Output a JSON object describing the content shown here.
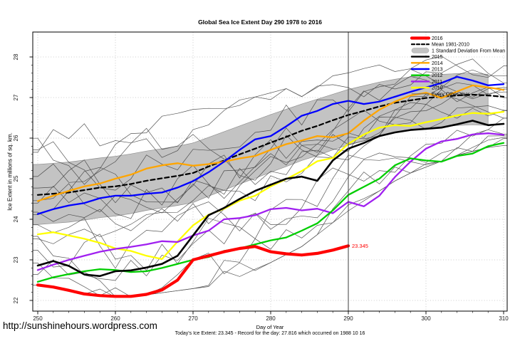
{
  "page": {
    "title": "Global Sea Ice Extent Day 290 1978 to 2016",
    "ylabel": "Ice Extent in millions of sq. km.",
    "xlabel": "Day of Year",
    "sublabel": "Today's Ice Extent: 23.345  - Record for the day: 27.816 which occurred on 1988 10 16",
    "footer_url": "http://sunshinehours.wordpress.com"
  },
  "chart_data": {
    "type": "line",
    "title": "Global Sea Ice Extent Day 290 1978 to 2016",
    "xlabel": "Day of Year",
    "ylabel": "Ice Extent in millions of sq. km.",
    "xlim": [
      249.4,
      310.5
    ],
    "ylim": [
      21.7,
      28.6
    ],
    "x_ticks": [
      250,
      260,
      270,
      280,
      290,
      300,
      310
    ],
    "y_ticks": [
      22,
      23,
      24,
      25,
      26,
      27,
      28
    ],
    "grid": "dotted",
    "x": [
      250,
      252,
      254,
      256,
      258,
      260,
      262,
      264,
      266,
      268,
      270,
      272,
      274,
      276,
      278,
      280,
      282,
      284,
      286,
      288,
      290,
      292,
      294,
      296,
      298,
      300,
      302,
      304,
      306,
      308,
      310
    ],
    "band": {
      "label": "1 Standard Deviation From Mean",
      "fill": "#C3C3C3",
      "edge": "#8f8f8f",
      "x_end": 308,
      "upper": [
        25.35,
        25.38,
        25.41,
        25.46,
        25.51,
        25.55,
        25.61,
        25.68,
        25.74,
        25.8,
        25.88,
        26.02,
        26.16,
        26.3,
        26.44,
        26.58,
        26.71,
        26.84,
        26.96,
        27.08,
        27.2,
        27.29,
        27.38,
        27.45,
        27.51,
        27.55,
        27.57,
        27.59,
        27.6,
        27.57,
        27.53
      ],
      "lower": [
        23.87,
        23.9,
        23.93,
        23.98,
        24.04,
        24.08,
        24.14,
        24.22,
        24.28,
        24.34,
        24.41,
        24.57,
        24.72,
        24.87,
        25.01,
        25.16,
        25.3,
        25.45,
        25.57,
        25.71,
        25.83,
        25.93,
        26.04,
        26.13,
        26.19,
        26.25,
        26.28,
        26.31,
        26.33,
        26.31,
        26.28
      ]
    },
    "series": [
      {
        "name": "Mean 1981-2010",
        "color": "#000000",
        "width": 2.2,
        "dash": "6,4",
        "values": [
          24.6,
          24.63,
          24.66,
          24.72,
          24.78,
          24.81,
          24.87,
          24.95,
          25.01,
          25.07,
          25.14,
          25.3,
          25.45,
          25.6,
          25.74,
          25.89,
          26.03,
          26.18,
          26.3,
          26.44,
          26.57,
          26.67,
          26.78,
          26.87,
          26.93,
          26.99,
          27.02,
          27.05,
          27.07,
          27.05,
          27.02
        ]
      },
      {
        "name": "2010",
        "color": "#FFFF00",
        "width": 2.3,
        "values": [
          23.63,
          23.68,
          23.6,
          23.52,
          23.42,
          23.28,
          23.22,
          23.1,
          23.02,
          23.45,
          23.85,
          24.11,
          24.26,
          24.46,
          24.58,
          24.81,
          24.99,
          25.19,
          25.43,
          25.51,
          25.86,
          26.09,
          26.26,
          26.32,
          26.3,
          26.39,
          26.47,
          26.56,
          26.62,
          26.6,
          26.65
        ]
      },
      {
        "name": "2011",
        "color": "#A020F0",
        "width": 2.3,
        "values": [
          22.75,
          22.88,
          23.0,
          23.1,
          23.2,
          23.27,
          23.32,
          23.38,
          23.46,
          23.44,
          23.6,
          23.72,
          24.0,
          24.03,
          24.1,
          24.25,
          24.28,
          24.22,
          24.26,
          24.15,
          24.43,
          24.32,
          24.58,
          25.04,
          25.42,
          25.74,
          25.92,
          25.98,
          26.09,
          26.12,
          26.08
        ]
      },
      {
        "name": "2012",
        "color": "#00CD00",
        "width": 2.3,
        "values": [
          22.46,
          22.57,
          22.65,
          22.72,
          22.77,
          22.75,
          22.7,
          22.72,
          22.8,
          22.9,
          23.0,
          23.07,
          23.22,
          23.28,
          23.38,
          23.48,
          23.55,
          23.72,
          23.9,
          24.22,
          24.6,
          24.8,
          25.0,
          25.33,
          25.5,
          25.45,
          25.42,
          25.56,
          25.62,
          25.8,
          25.88
        ]
      },
      {
        "name": "2014",
        "color": "#FFA500",
        "width": 2.3,
        "values": [
          24.45,
          24.58,
          24.7,
          24.81,
          24.88,
          25.0,
          25.1,
          25.25,
          25.33,
          25.38,
          25.32,
          25.36,
          25.42,
          25.5,
          25.56,
          25.71,
          25.85,
          25.94,
          26.05,
          26.02,
          26.12,
          26.43,
          26.7,
          26.9,
          27.05,
          27.12,
          26.99,
          27.15,
          27.3,
          27.25,
          27.19
        ]
      },
      {
        "name": "2013",
        "color": "#0000FF",
        "width": 2.3,
        "values": [
          24.13,
          24.25,
          24.34,
          24.4,
          24.52,
          24.58,
          24.58,
          24.63,
          24.66,
          24.78,
          24.94,
          25.16,
          25.42,
          25.71,
          25.97,
          26.05,
          26.29,
          26.55,
          26.67,
          26.84,
          26.92,
          26.84,
          26.9,
          27.02,
          27.14,
          27.25,
          27.36,
          27.51,
          27.42,
          27.3,
          27.33
        ]
      },
      {
        "name": "2015",
        "color": "#000000",
        "width": 2.6,
        "values": [
          22.86,
          22.97,
          22.85,
          22.64,
          22.6,
          22.72,
          22.74,
          22.81,
          22.9,
          23.1,
          23.6,
          24.1,
          24.28,
          24.5,
          24.7,
          24.85,
          25.0,
          25.05,
          24.95,
          25.45,
          25.74,
          25.88,
          26.05,
          26.14,
          26.2,
          26.23,
          26.26,
          26.34,
          26.43,
          26.32,
          26.35
        ]
      },
      {
        "name": "2016",
        "color": "#FF0000",
        "width": 4.2,
        "values": [
          22.38,
          22.33,
          22.25,
          22.16,
          22.12,
          22.1,
          22.1,
          22.15,
          22.26,
          22.5,
          23.0,
          23.1,
          23.2,
          23.28,
          23.33,
          23.2,
          23.15,
          23.12,
          23.16,
          23.24,
          23.345
        ]
      }
    ],
    "other_years": {
      "label": "Every Other Year",
      "count": 16,
      "color": "#3f3f3f",
      "min": [
        22.25,
        22.18,
        22.1,
        22.02,
        21.98,
        21.95,
        21.95,
        22.0,
        22.05,
        22.1,
        22.15,
        22.2,
        22.3,
        22.45,
        22.6,
        22.8,
        23.0,
        23.2,
        23.5,
        23.8,
        24.1,
        24.35,
        24.6,
        24.85,
        25.05,
        25.2,
        25.35,
        25.5,
        25.6,
        25.7,
        25.75
      ],
      "max": [
        26.42,
        26.45,
        26.48,
        26.5,
        26.52,
        26.55,
        26.6,
        26.62,
        26.68,
        26.75,
        26.85,
        26.92,
        27.0,
        27.08,
        27.15,
        27.25,
        27.35,
        27.45,
        27.55,
        27.65,
        27.75,
        27.82,
        27.9,
        27.95,
        28.0,
        28.05,
        28.1,
        28.1,
        28.08,
        28.05,
        28.0
      ]
    },
    "annotations": {
      "vline_day": 290,
      "end_label": "23.345",
      "end_value": 23.345
    },
    "legend": [
      {
        "label": "2016",
        "color": "#FF0000",
        "style": "thick"
      },
      {
        "label": "Mean 1981-2010",
        "color": "#000000",
        "style": "dashed"
      },
      {
        "label": "1 Standard Deviation From Mean",
        "color": "#C3C3C3",
        "style": "band"
      },
      {
        "label": "2015",
        "color": "#000000",
        "style": "medium"
      },
      {
        "label": "2014",
        "color": "#FFA500",
        "style": "medium"
      },
      {
        "label": "2013",
        "color": "#0000FF",
        "style": "medium"
      },
      {
        "label": "2012",
        "color": "#00CD00",
        "style": "medium"
      },
      {
        "label": "2011",
        "color": "#A020F0",
        "style": "medium"
      },
      {
        "label": "2010",
        "color": "#FFFF00",
        "style": "medium"
      },
      {
        "label": "Every Other Year",
        "color": "#666666",
        "style": "thin"
      }
    ]
  }
}
